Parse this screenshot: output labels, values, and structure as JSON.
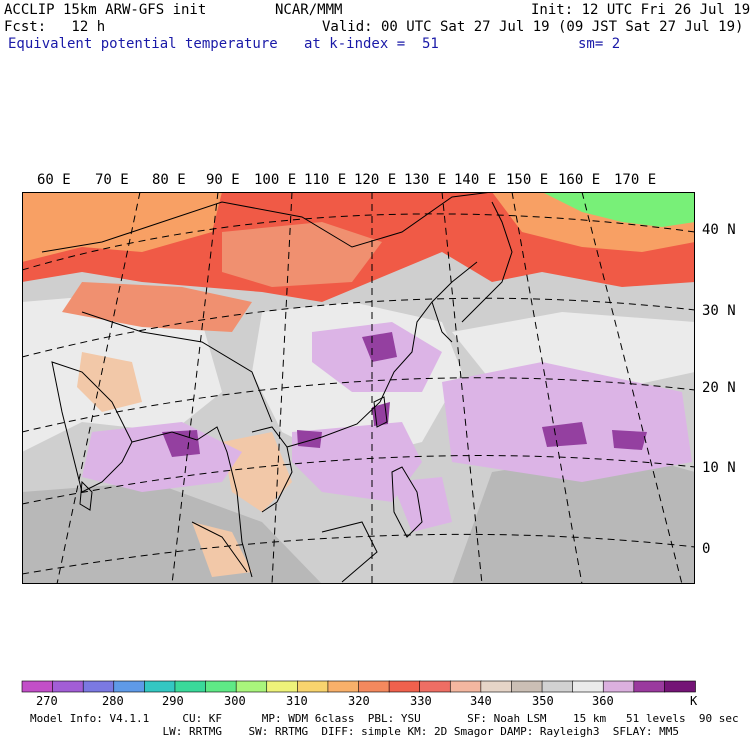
{
  "header": {
    "model": "ACCLIP 15km ARW-GFS init",
    "org": "NCAR/MMM",
    "init": "Init: 12 UTC Fri 26 Jul 19",
    "fcst": "Fcst:   12 h",
    "valid": "Valid: 00 UTC Sat 27 Jul 19 (09 JST Sat 27 Jul 19)",
    "field": "Equivalent potential temperature",
    "level": "at k-index =  51",
    "smooth": "sm= 2"
  },
  "map": {
    "longitude_labels": [
      "60 E",
      "70 E",
      "80 E",
      "90 E",
      "100 E",
      "110 E",
      "120 E",
      "130 E",
      "140 E",
      "150 E",
      "160 E",
      "170 E"
    ],
    "latitude_labels": [
      "40 N",
      "30 N",
      "20 N",
      "10 N",
      "0"
    ],
    "colors": {
      "gray_light": "#ebebeb",
      "gray_mid": "#cfcfcf",
      "gray_dark": "#b8b8b8",
      "lavender": "#dcb4e6",
      "purple": "#9440a0",
      "dark_purple": "#7a1e8a",
      "tan": "#f2c8a8",
      "salmon": "#f09070",
      "red": "#f05a46",
      "orange": "#f8a064",
      "green": "#78f078"
    }
  },
  "colorbar": {
    "labels": [
      "270",
      "280",
      "290",
      "300",
      "310",
      "320",
      "330",
      "340",
      "350",
      "360"
    ],
    "unit": "K",
    "swatches": [
      "#c24fc8",
      "#a25ed6",
      "#7b79e2",
      "#5f9ae8",
      "#34c7c2",
      "#3ad99a",
      "#5fe986",
      "#a9f57c",
      "#eef37a",
      "#f8d46e",
      "#f8b06a",
      "#f4895e",
      "#f0614d",
      "#ee6e64",
      "#f4b7a0",
      "#e6d5c8",
      "#cbbfb5",
      "#d2d2d2",
      "#ebebeb",
      "#dbb0df",
      "#9a3a9e",
      "#741476"
    ]
  },
  "model_info": {
    "line1": "Model Info: V4.1.1     CU: KF      MP: WDM 6class  PBL: YSU       SF: Noah LSM    15 km   51 levels  90 sec",
    "line2": "                    LW: RRTMG    SW: RRTMG  DIFF: simple KM: 2D Smagor DAMP: Rayleigh3  SFLAY: MM5"
  }
}
